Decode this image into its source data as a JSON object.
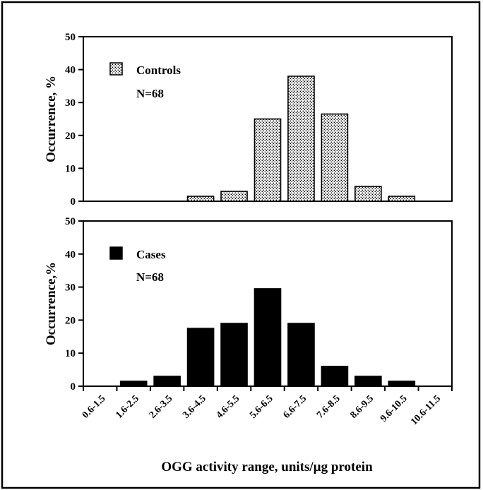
{
  "chart_data": [
    {
      "type": "bar",
      "categories": [
        "0.6-1.5",
        "1.6-2.5",
        "2.6-3.5",
        "3.6-4.5",
        "4.6-5.5",
        "5.6-6.5",
        "6.6-7.5",
        "7.6-8.5",
        "8.6-9.5",
        "9.6-10.5",
        "10.6-11.5"
      ],
      "series": [
        {
          "name": "Controls",
          "values": [
            0,
            0,
            0,
            1.5,
            3,
            25,
            38,
            26.5,
            4.5,
            1.5,
            0
          ]
        }
      ],
      "legend_note": "N=68",
      "ylabel": "Occurrence, %",
      "ylim": [
        0,
        50
      ],
      "yticks": [
        "0",
        "10",
        "20",
        "30",
        "40",
        "50"
      ],
      "fill": "dotted",
      "legend_position": "top-left",
      "grid": false
    },
    {
      "type": "bar",
      "categories": [
        "0.6-1.5",
        "1.6-2.5",
        "2.6-3.5",
        "3.6-4.5",
        "4.6-5.5",
        "5.6-6.5",
        "6.6-7.5",
        "7.6-8.5",
        "8.6-9.5",
        "9.6-10.5",
        "10.6-11.5"
      ],
      "series": [
        {
          "name": "Cases",
          "values": [
            0,
            1.5,
            3,
            17.5,
            19,
            29.5,
            19,
            6,
            3,
            1.5,
            0
          ]
        }
      ],
      "legend_note": "N=68",
      "ylabel": "Occurrence,%",
      "ylim": [
        0,
        50
      ],
      "yticks": [
        "0",
        "10",
        "20",
        "30",
        "40",
        "50"
      ],
      "fill": "#000000",
      "legend_position": "top-left",
      "grid": false
    }
  ],
  "xlabel": "OGG activity range, units/µg protein",
  "colors": {
    "bar_stroke": "#000000",
    "dot_fill": "#000000",
    "case_fill": "#000000",
    "background": "#ffffff"
  }
}
